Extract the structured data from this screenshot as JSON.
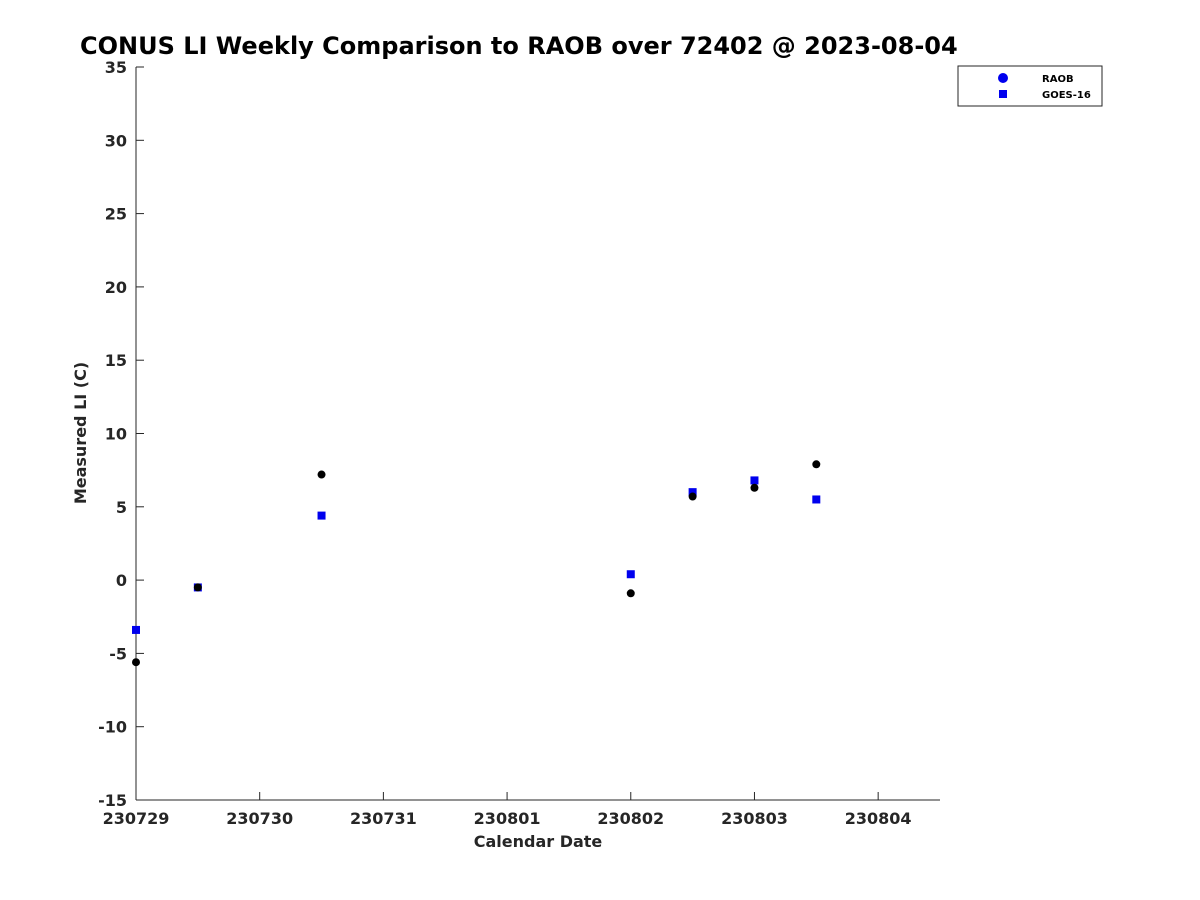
{
  "chart_data": {
    "type": "scatter",
    "title": "CONUS LI Weekly Comparison to RAOB over 72402 @ 2023-08-04",
    "xlabel": "Calendar Date",
    "ylabel": "Measured LI (C)",
    "x_ticks": [
      "230729",
      "230730",
      "230731",
      "230801",
      "230802",
      "230803",
      "230804"
    ],
    "y_ticks": [
      35,
      30,
      25,
      20,
      15,
      10,
      5,
      0,
      -5,
      -10,
      -15
    ],
    "xlim": [
      "2023-07-29 00:00",
      "2023-08-04 12:00"
    ],
    "ylim": [
      -15,
      35
    ],
    "legend_position": "top-right",
    "series": [
      {
        "name": "RAOB",
        "marker": "circle",
        "color": "#000000",
        "legend_color": "#0000ee",
        "points": [
          {
            "x": "2023-07-29 00:00",
            "y": -5.6
          },
          {
            "x": "2023-07-29 12:00",
            "y": -0.5
          },
          {
            "x": "2023-07-30 12:00",
            "y": 7.2
          },
          {
            "x": "2023-08-02 00:00",
            "y": -0.9
          },
          {
            "x": "2023-08-02 12:00",
            "y": 5.7
          },
          {
            "x": "2023-08-03 00:00",
            "y": 6.3
          },
          {
            "x": "2023-08-03 12:00",
            "y": 7.9
          }
        ]
      },
      {
        "name": "GOES-16",
        "marker": "square",
        "color": "#0000ee",
        "points": [
          {
            "x": "2023-07-29 00:00",
            "y": -3.4
          },
          {
            "x": "2023-07-29 12:00",
            "y": -0.5
          },
          {
            "x": "2023-07-30 12:00",
            "y": 4.4
          },
          {
            "x": "2023-08-02 00:00",
            "y": 0.4
          },
          {
            "x": "2023-08-02 12:00",
            "y": 6.0
          },
          {
            "x": "2023-08-03 00:00",
            "y": 6.8
          },
          {
            "x": "2023-08-03 12:00",
            "y": 5.5
          }
        ]
      }
    ]
  }
}
